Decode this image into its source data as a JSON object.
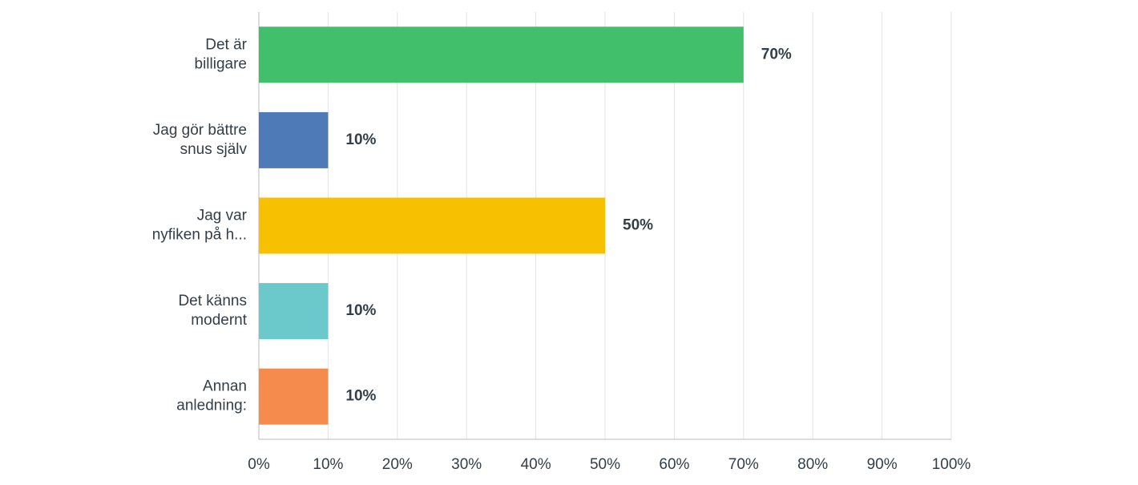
{
  "chart_data": {
    "type": "hbar",
    "categories": [
      "Det är\nbilligare",
      "Jag gör bättre\nsnus själv",
      "Jag var\nnyfiken på h...",
      "Det känns\nmodernt",
      "Annan\nanledning:"
    ],
    "values": [
      70,
      10,
      50,
      10,
      10
    ],
    "value_labels": [
      "70%",
      "10%",
      "50%",
      "10%",
      "10%"
    ],
    "colors": [
      "#41bf6b",
      "#4f7ab8",
      "#f7c000",
      "#6bc8cb",
      "#f58c4e"
    ],
    "xlim": [
      0,
      100
    ],
    "xticks": [
      {
        "value": 0,
        "label": "0%"
      },
      {
        "value": 10,
        "label": "10%"
      },
      {
        "value": 20,
        "label": "20%"
      },
      {
        "value": 30,
        "label": "30%"
      },
      {
        "value": 40,
        "label": "40%"
      },
      {
        "value": 50,
        "label": "50%"
      },
      {
        "value": 60,
        "label": "60%"
      },
      {
        "value": 70,
        "label": "70%"
      },
      {
        "value": 80,
        "label": "80%"
      },
      {
        "value": 90,
        "label": "90%"
      },
      {
        "value": 100,
        "label": "100%"
      }
    ],
    "grid": true
  }
}
